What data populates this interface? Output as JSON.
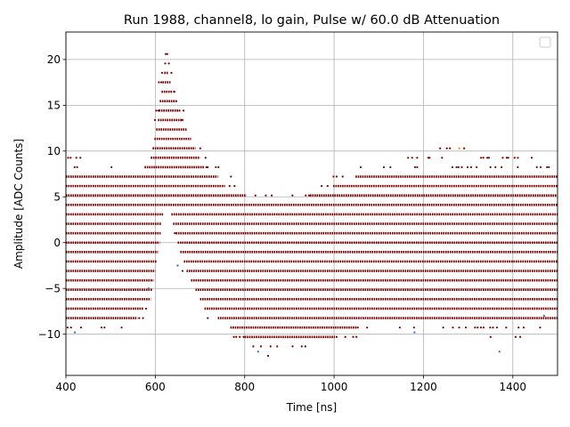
{
  "chart_data": {
    "type": "scatter",
    "title": "Run 1988, channel8, lo gain, Pulse w/ 60.0 dB Attenuation",
    "xlabel": "Time [ns]",
    "ylabel": "Amplitude [ADC Counts]",
    "xlim": [
      400,
      1500
    ],
    "ylim": [
      -14.5,
      23
    ],
    "xticks": [
      400,
      600,
      800,
      1000,
      1200,
      1400
    ],
    "xtick_labels": [
      "400",
      "600",
      "800",
      "1000",
      "1200",
      "1400"
    ],
    "yticks": [
      -10,
      -5,
      0,
      5,
      10,
      15,
      20
    ],
    "ytick_labels": [
      "−10",
      "−5",
      "0",
      "5",
      "10",
      "15",
      "20"
    ],
    "grid": true,
    "legend": "top-right (empty)",
    "quantization_step": 1.03,
    "marker_color": "#7b0000",
    "outlier_colors": [
      "#1f77b4",
      "#ff7f0e"
    ],
    "pulse_envelope": {
      "time_ns": [
        400,
        560,
        590,
        605,
        615,
        622,
        630,
        640,
        655,
        670,
        690,
        710,
        740,
        770,
        800,
        850,
        900,
        950,
        1000,
        1050,
        1100,
        1200,
        1300,
        1400,
        1500
      ],
      "upper_dense_adc": [
        7.2,
        7.2,
        9.3,
        13.4,
        17.5,
        19.6,
        18.5,
        16.5,
        14.4,
        12.4,
        10.3,
        8.2,
        7.2,
        5.2,
        5.2,
        4.1,
        4.1,
        5.2,
        6.2,
        7.2,
        7.2,
        7.2,
        7.2,
        7.2,
        7.2
      ],
      "lower_dense_adc": [
        -8.2,
        -8.2,
        -6.2,
        -2.1,
        2.1,
        4.1,
        4.1,
        2.1,
        -1.0,
        -3.1,
        -5.2,
        -7.2,
        -8.2,
        -9.3,
        -10.3,
        -10.3,
        -10.3,
        -10.3,
        -10.3,
        -9.3,
        -8.2,
        -8.2,
        -8.2,
        -8.2,
        -8.2
      ],
      "upper_sparse_adc": [
        10.3,
        8.2,
        10.3,
        17.5,
        21.6,
        21.6,
        20.6,
        18.5,
        15.5,
        13.4,
        11.3,
        9.3,
        8.2,
        7.2,
        6.2,
        5.2,
        5.2,
        6.2,
        7.2,
        8.2,
        8.2,
        10.3,
        10.3,
        10.3,
        8.2
      ],
      "lower_sparse_adc": [
        -9.3,
        -9.3,
        -7.2,
        -5.2,
        0,
        3.1,
        3.1,
        1.0,
        -2.1,
        -4.1,
        -6.2,
        -8.2,
        -9.3,
        -11.3,
        -12.4,
        -12.4,
        -12.4,
        -11.3,
        -11.3,
        -10.3,
        -9.3,
        -9.3,
        -9.3,
        -11.3,
        -9.3
      ]
    },
    "outlier_points": [
      {
        "x": 1280,
        "y": 10.3,
        "color": "#ff7f0e"
      },
      {
        "x": 1370,
        "y": -11.9,
        "color": "#1f77b4"
      },
      {
        "x": 1180,
        "y": -9.8,
        "color": "#1f77b4"
      },
      {
        "x": 830,
        "y": -11.9,
        "color": "#1f77b4"
      },
      {
        "x": 650,
        "y": -2.5,
        "color": "#1f77b4"
      },
      {
        "x": 585,
        "y": -5.0,
        "color": "#1f77b4"
      },
      {
        "x": 420,
        "y": -9.8,
        "color": "#1f77b4"
      },
      {
        "x": 1470,
        "y": -8.0,
        "color": "#1f77b4"
      }
    ]
  }
}
